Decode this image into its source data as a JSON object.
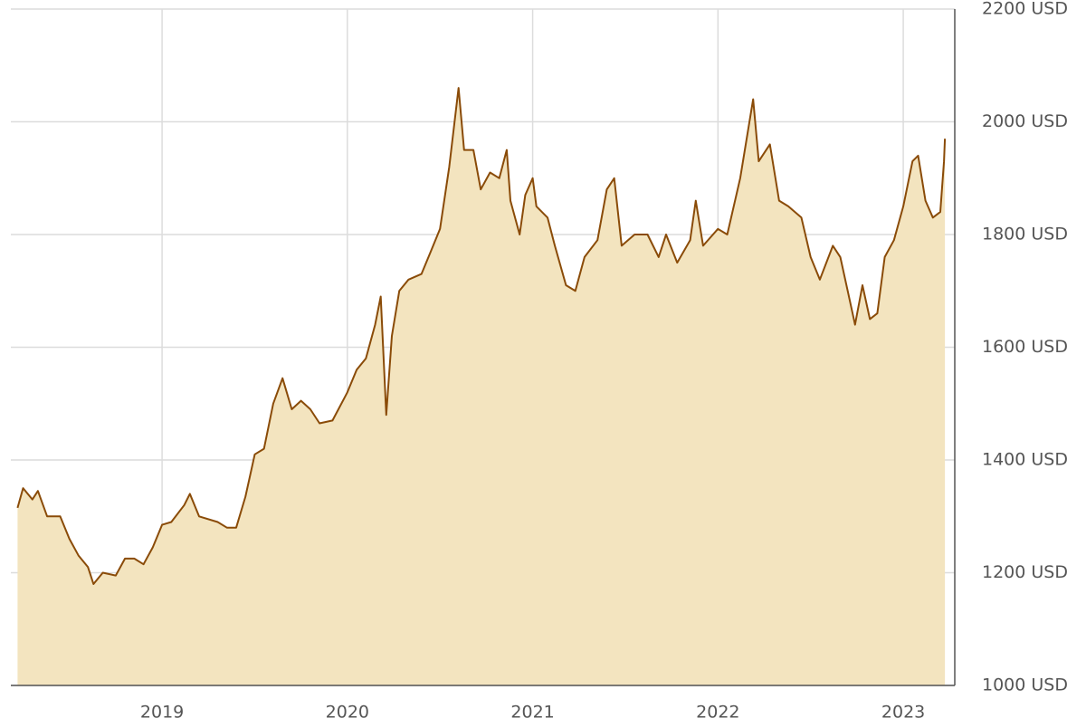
{
  "chart_data": {
    "type": "area",
    "x": [
      2018.22,
      2018.25,
      2018.3,
      2018.33,
      2018.38,
      2018.45,
      2018.5,
      2018.55,
      2018.6,
      2018.63,
      2018.68,
      2018.75,
      2018.8,
      2018.85,
      2018.9,
      2018.95,
      2019.0,
      2019.05,
      2019.12,
      2019.15,
      2019.2,
      2019.3,
      2019.35,
      2019.4,
      2019.45,
      2019.5,
      2019.55,
      2019.6,
      2019.65,
      2019.7,
      2019.75,
      2019.8,
      2019.85,
      2019.92,
      2020.0,
      2020.05,
      2020.1,
      2020.15,
      2020.18,
      2020.21,
      2020.24,
      2020.28,
      2020.33,
      2020.4,
      2020.45,
      2020.5,
      2020.55,
      2020.6,
      2020.63,
      2020.68,
      2020.72,
      2020.77,
      2020.82,
      2020.86,
      2020.88,
      2020.93,
      2020.96,
      2021.0,
      2021.02,
      2021.08,
      2021.12,
      2021.18,
      2021.23,
      2021.28,
      2021.35,
      2021.4,
      2021.44,
      2021.48,
      2021.55,
      2021.62,
      2021.68,
      2021.72,
      2021.78,
      2021.85,
      2021.88,
      2021.92,
      2022.0,
      2022.05,
      2022.12,
      2022.19,
      2022.22,
      2022.28,
      2022.33,
      2022.38,
      2022.45,
      2022.5,
      2022.55,
      2022.62,
      2022.66,
      2022.7,
      2022.74,
      2022.78,
      2022.82,
      2022.86,
      2022.9,
      2022.95,
      2023.0,
      2023.05,
      2023.08,
      2023.12,
      2023.16,
      2023.2,
      2023.22,
      2023.225
    ],
    "values": [
      1315,
      1350,
      1330,
      1345,
      1300,
      1300,
      1260,
      1230,
      1210,
      1180,
      1200,
      1195,
      1225,
      1225,
      1215,
      1245,
      1285,
      1290,
      1320,
      1340,
      1300,
      1290,
      1280,
      1280,
      1335,
      1410,
      1420,
      1500,
      1545,
      1490,
      1505,
      1490,
      1465,
      1470,
      1520,
      1560,
      1580,
      1640,
      1690,
      1480,
      1620,
      1700,
      1720,
      1730,
      1770,
      1810,
      1920,
      2060,
      1950,
      1950,
      1880,
      1910,
      1900,
      1950,
      1860,
      1800,
      1870,
      1900,
      1850,
      1830,
      1780,
      1710,
      1700,
      1760,
      1790,
      1880,
      1900,
      1780,
      1800,
      1800,
      1760,
      1800,
      1750,
      1790,
      1860,
      1780,
      1810,
      1800,
      1900,
      2040,
      1930,
      1960,
      1860,
      1850,
      1830,
      1760,
      1720,
      1780,
      1760,
      1700,
      1640,
      1710,
      1650,
      1660,
      1760,
      1790,
      1850,
      1930,
      1940,
      1860,
      1830,
      1840,
      1930,
      1970
    ],
    "line_color": "#8a4b08",
    "fill_color": "#f3e4bf",
    "xlim": [
      2018.184,
      2023.278
    ],
    "xticks": [
      2019,
      2020,
      2021,
      2022,
      2023
    ],
    "ylim": [
      1000,
      2200
    ],
    "yticks": [
      {
        "value": 1000,
        "label": "1000 USD"
      },
      {
        "value": 1200,
        "label": "1200 USD"
      },
      {
        "value": 1400,
        "label": "1400 USD"
      },
      {
        "value": 1600,
        "label": "1600 USD"
      },
      {
        "value": 1800,
        "label": "1800 USD"
      },
      {
        "value": 2000,
        "label": "2000 USD"
      },
      {
        "value": 2200,
        "label": "2200 USD"
      }
    ],
    "grid": true
  }
}
